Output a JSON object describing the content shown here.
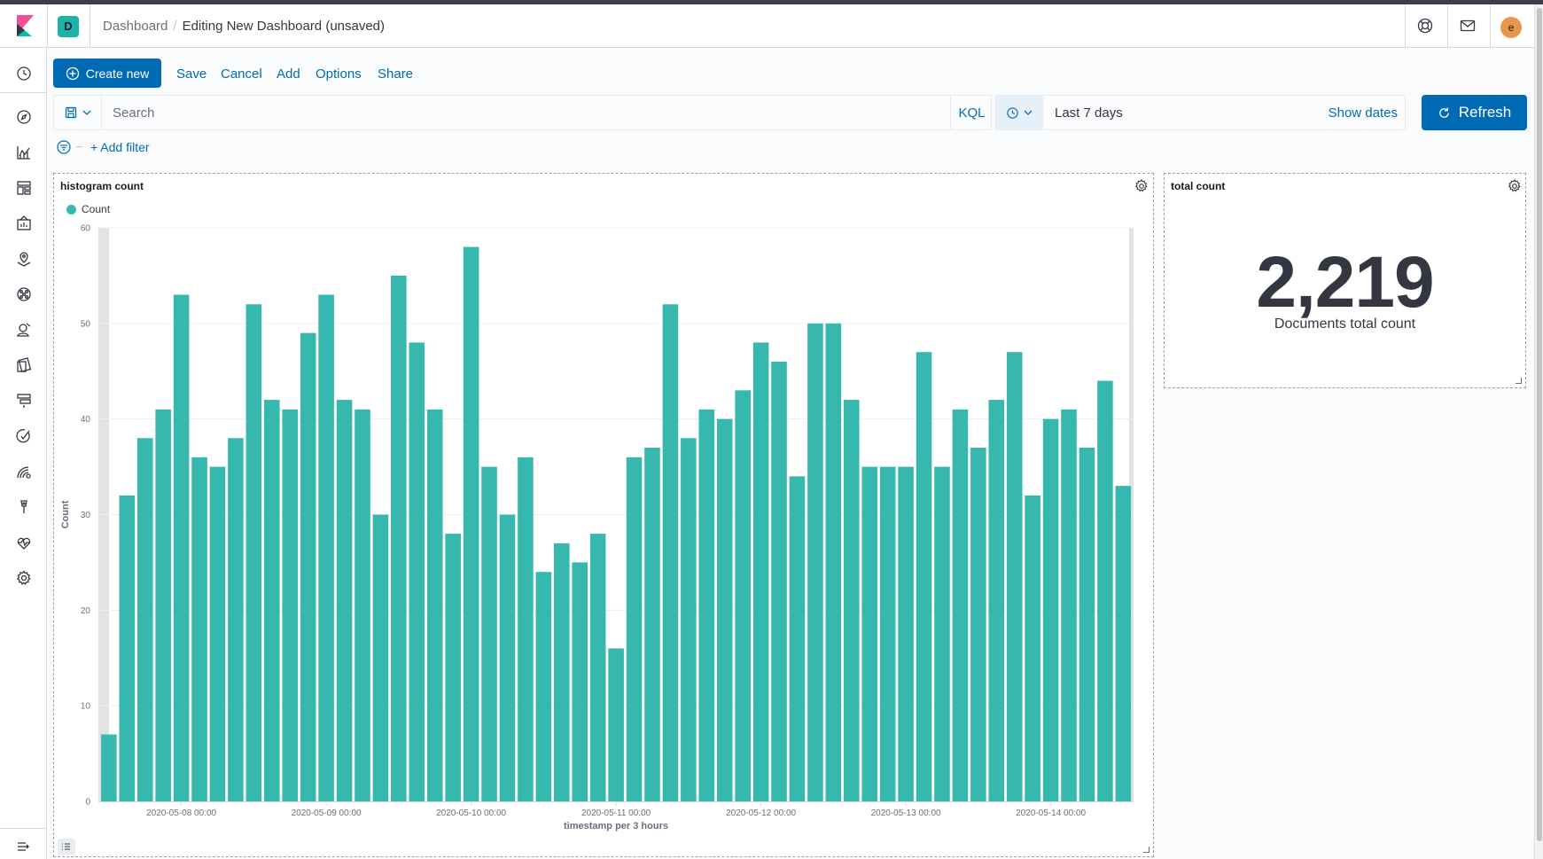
{
  "header": {
    "space_initial": "D",
    "breadcrumb_root": "Dashboard",
    "breadcrumb_current": "Editing New Dashboard (unsaved)",
    "user_initial": "e"
  },
  "sidebar": {
    "items": [
      {
        "icon": "clock-icon",
        "label": "Recently viewed"
      },
      {
        "icon": "compass-icon",
        "label": "Discover"
      },
      {
        "icon": "visualize-icon",
        "label": "Visualize"
      },
      {
        "icon": "dashboard-icon",
        "label": "Dashboard"
      },
      {
        "icon": "canvas-icon",
        "label": "Canvas"
      },
      {
        "icon": "maps-icon",
        "label": "Maps"
      },
      {
        "icon": "ml-icon",
        "label": "Machine Learning"
      },
      {
        "icon": "siem-icon",
        "label": "SIEM"
      },
      {
        "icon": "logs-icon",
        "label": "Logs"
      },
      {
        "icon": "infra-icon",
        "label": "Infrastructure"
      },
      {
        "icon": "uptime-icon",
        "label": "Uptime"
      },
      {
        "icon": "apm-icon",
        "label": "APM"
      },
      {
        "icon": "devtools-icon",
        "label": "Dev Tools"
      },
      {
        "icon": "monitoring-icon",
        "label": "Stack Monitoring"
      },
      {
        "icon": "management-icon",
        "label": "Management"
      }
    ]
  },
  "toolbar": {
    "create_new_label": "Create new",
    "save_label": "Save",
    "cancel_label": "Cancel",
    "add_label": "Add",
    "options_label": "Options",
    "share_label": "Share"
  },
  "query": {
    "search_placeholder": "Search",
    "language_label": "KQL"
  },
  "time": {
    "range_label": "Last 7 days",
    "show_dates_label": "Show dates",
    "refresh_label": "Refresh"
  },
  "filters": {
    "add_filter_label": "+ Add filter"
  },
  "colors": {
    "accent": "#006BB4",
    "bar": "#37B8AE",
    "space_avatar": "#1BB2A7",
    "user_avatar": "#E7964C"
  },
  "panels": {
    "histogram_title": "histogram count",
    "metric_title": "total count",
    "metric_value": "2,219",
    "metric_label": "Documents total count"
  },
  "chart_data": {
    "type": "bar",
    "title": "histogram count",
    "xlabel": "timestamp per 3 hours",
    "ylabel": "Count",
    "legend": [
      "Count"
    ],
    "legend_position": "top-left",
    "ylim": [
      0,
      60
    ],
    "yticks": [
      0,
      10,
      20,
      30,
      40,
      50,
      60
    ],
    "x_tick_labels": [
      "2020-05-08 00:00",
      "2020-05-09 00:00",
      "2020-05-10 00:00",
      "2020-05-11 00:00",
      "2020-05-12 00:00",
      "2020-05-13 00:00",
      "2020-05-14 00:00"
    ],
    "x_tick_bar_index": [
      4,
      12,
      20,
      28,
      36,
      44,
      52
    ],
    "grid": true,
    "series": [
      {
        "name": "Count",
        "values": [
          7,
          32,
          38,
          41,
          53,
          36,
          35,
          38,
          52,
          42,
          41,
          49,
          53,
          42,
          41,
          30,
          55,
          48,
          41,
          28,
          58,
          35,
          30,
          36,
          24,
          27,
          25,
          28,
          16,
          36,
          37,
          52,
          38,
          41,
          40,
          43,
          48,
          46,
          34,
          50,
          50,
          42,
          35,
          35,
          35,
          47,
          35,
          41,
          37,
          42,
          47,
          32,
          40,
          41,
          37,
          44,
          33
        ]
      }
    ]
  }
}
